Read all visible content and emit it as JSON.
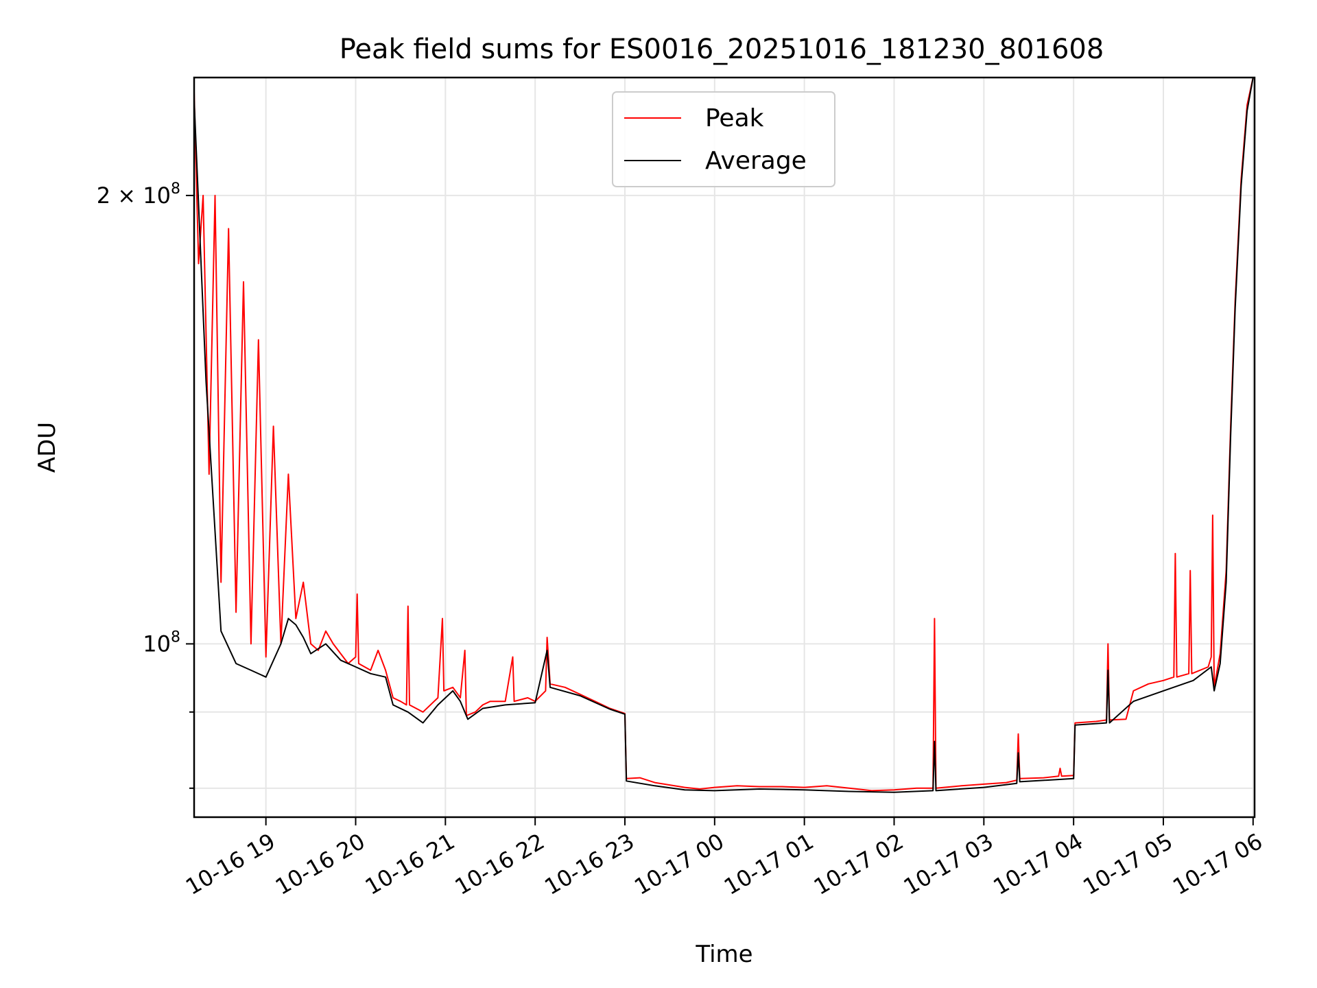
{
  "chart_data": {
    "type": "line",
    "title": "Peak field sums for ES0016_20251016_181230_801608",
    "xlabel": "Time",
    "ylabel": "ADU",
    "yscale": "log",
    "ylim": [
      76500000,
      240000000
    ],
    "xlim": [
      "2025-10-16 18:12",
      "2025-10-17 06:01"
    ],
    "x_ticks": [
      {
        "t": "2025-10-16 19:00",
        "label": "10-16 19"
      },
      {
        "t": "2025-10-16 20:00",
        "label": "10-16 20"
      },
      {
        "t": "2025-10-16 21:00",
        "label": "10-16 21"
      },
      {
        "t": "2025-10-16 22:00",
        "label": "10-16 22"
      },
      {
        "t": "2025-10-16 23:00",
        "label": "10-16 23"
      },
      {
        "t": "2025-10-17 00:00",
        "label": "10-17 00"
      },
      {
        "t": "2025-10-17 01:00",
        "label": "10-17 01"
      },
      {
        "t": "2025-10-17 02:00",
        "label": "10-17 02"
      },
      {
        "t": "2025-10-17 03:00",
        "label": "10-17 03"
      },
      {
        "t": "2025-10-17 04:00",
        "label": "10-17 04"
      },
      {
        "t": "2025-10-17 05:00",
        "label": "10-17 05"
      },
      {
        "t": "2025-10-17 06:00",
        "label": "10-17 06"
      }
    ],
    "y_major_ticks": [
      {
        "value": 100000000,
        "base": "10",
        "exp": "8",
        "mant": ""
      },
      {
        "value": 200000000,
        "base": "10",
        "exp": "8",
        "mant": "2 × "
      }
    ],
    "y_minor_ticks": [
      80000000,
      90000000
    ],
    "grid": true,
    "legend": {
      "position": "top-center"
    },
    "series": [
      {
        "name": "Peak",
        "color": "#ff0000",
        "points": [
          [
            "2025-10-16 18:12",
            235000000
          ],
          [
            "2025-10-16 18:15",
            180000000
          ],
          [
            "2025-10-16 18:18",
            200000000
          ],
          [
            "2025-10-16 18:22",
            130000000
          ],
          [
            "2025-10-16 18:26",
            200000000
          ],
          [
            "2025-10-16 18:30",
            110000000
          ],
          [
            "2025-10-16 18:35",
            190000000
          ],
          [
            "2025-10-16 18:40",
            105000000
          ],
          [
            "2025-10-16 18:45",
            175000000
          ],
          [
            "2025-10-16 18:50",
            100000000
          ],
          [
            "2025-10-16 18:55",
            160000000
          ],
          [
            "2025-10-16 19:00",
            98000000
          ],
          [
            "2025-10-16 19:05",
            140000000
          ],
          [
            "2025-10-16 19:10",
            100000000
          ],
          [
            "2025-10-16 19:15",
            130000000
          ],
          [
            "2025-10-16 19:20",
            104000000
          ],
          [
            "2025-10-16 19:25",
            110000000
          ],
          [
            "2025-10-16 19:30",
            100000000
          ],
          [
            "2025-10-16 19:35",
            99000000
          ],
          [
            "2025-10-16 19:40",
            102000000
          ],
          [
            "2025-10-16 19:45",
            100000000
          ],
          [
            "2025-10-16 19:55",
            97000000
          ],
          [
            "2025-10-16 20:00",
            98000000
          ],
          [
            "2025-10-16 20:01",
            108000000
          ],
          [
            "2025-10-16 20:02",
            97000000
          ],
          [
            "2025-10-16 20:10",
            96000000
          ],
          [
            "2025-10-16 20:15",
            99000000
          ],
          [
            "2025-10-16 20:20",
            96000000
          ],
          [
            "2025-10-16 20:25",
            92000000
          ],
          [
            "2025-10-16 20:30",
            91500000
          ],
          [
            "2025-10-16 20:34",
            91000000
          ],
          [
            "2025-10-16 20:35",
            106000000
          ],
          [
            "2025-10-16 20:36",
            91000000
          ],
          [
            "2025-10-16 20:45",
            90000000
          ],
          [
            "2025-10-16 20:55",
            92000000
          ],
          [
            "2025-10-16 20:58",
            104000000
          ],
          [
            "2025-10-16 20:59",
            93000000
          ],
          [
            "2025-10-16 21:05",
            93500000
          ],
          [
            "2025-10-16 21:10",
            92000000
          ],
          [
            "2025-10-16 21:13",
            99000000
          ],
          [
            "2025-10-16 21:14",
            89500000
          ],
          [
            "2025-10-16 21:20",
            90000000
          ],
          [
            "2025-10-16 21:25",
            91000000
          ],
          [
            "2025-10-16 21:30",
            91500000
          ],
          [
            "2025-10-16 21:40",
            91500000
          ],
          [
            "2025-10-16 21:45",
            98000000
          ],
          [
            "2025-10-16 21:46",
            91500000
          ],
          [
            "2025-10-16 21:55",
            92000000
          ],
          [
            "2025-10-16 22:00",
            91500000
          ],
          [
            "2025-10-16 22:07",
            93000000
          ],
          [
            "2025-10-16 22:08",
            101000000
          ],
          [
            "2025-10-16 22:10",
            94000000
          ],
          [
            "2025-10-16 22:20",
            93500000
          ],
          [
            "2025-10-16 22:30",
            92500000
          ],
          [
            "2025-10-16 22:40",
            91500000
          ],
          [
            "2025-10-16 22:50",
            90500000
          ],
          [
            "2025-10-16 23:00",
            89800000
          ],
          [
            "2025-10-16 23:01",
            81200000
          ],
          [
            "2025-10-16 23:10",
            81300000
          ],
          [
            "2025-10-16 23:20",
            80700000
          ],
          [
            "2025-10-16 23:30",
            80400000
          ],
          [
            "2025-10-16 23:40",
            80100000
          ],
          [
            "2025-10-16 23:50",
            79900000
          ],
          [
            "2025-10-17 00:00",
            80100000
          ],
          [
            "2025-10-17 00:15",
            80300000
          ],
          [
            "2025-10-17 00:30",
            80200000
          ],
          [
            "2025-10-17 00:45",
            80200000
          ],
          [
            "2025-10-17 01:00",
            80100000
          ],
          [
            "2025-10-17 01:15",
            80300000
          ],
          [
            "2025-10-17 01:30",
            80000000
          ],
          [
            "2025-10-17 01:45",
            79700000
          ],
          [
            "2025-10-17 02:00",
            79800000
          ],
          [
            "2025-10-17 02:15",
            80000000
          ],
          [
            "2025-10-17 02:26",
            80000000
          ],
          [
            "2025-10-17 02:27",
            104000000
          ],
          [
            "2025-10-17 02:28",
            80000000
          ],
          [
            "2025-10-17 02:45",
            80300000
          ],
          [
            "2025-10-17 03:00",
            80500000
          ],
          [
            "2025-10-17 03:15",
            80700000
          ],
          [
            "2025-10-17 03:22",
            81000000
          ],
          [
            "2025-10-17 03:23",
            87000000
          ],
          [
            "2025-10-17 03:24",
            81200000
          ],
          [
            "2025-10-17 03:40",
            81300000
          ],
          [
            "2025-10-17 03:50",
            81500000
          ],
          [
            "2025-10-17 03:51",
            82500000
          ],
          [
            "2025-10-17 03:52",
            81500000
          ],
          [
            "2025-10-17 04:00",
            81600000
          ],
          [
            "2025-10-17 04:01",
            88500000
          ],
          [
            "2025-10-17 04:15",
            88700000
          ],
          [
            "2025-10-17 04:22",
            88900000
          ],
          [
            "2025-10-17 04:23",
            100000000
          ],
          [
            "2025-10-17 04:24",
            88900000
          ],
          [
            "2025-10-17 04:35",
            89000000
          ],
          [
            "2025-10-17 04:40",
            93000000
          ],
          [
            "2025-10-17 04:50",
            94000000
          ],
          [
            "2025-10-17 05:00",
            94500000
          ],
          [
            "2025-10-17 05:07",
            95000000
          ],
          [
            "2025-10-17 05:08",
            115000000
          ],
          [
            "2025-10-17 05:09",
            95000000
          ],
          [
            "2025-10-17 05:17",
            95500000
          ],
          [
            "2025-10-17 05:18",
            112000000
          ],
          [
            "2025-10-17 05:19",
            95500000
          ],
          [
            "2025-10-17 05:30",
            96500000
          ],
          [
            "2025-10-17 05:32",
            98000000
          ],
          [
            "2025-10-17 05:33",
            122000000
          ],
          [
            "2025-10-17 05:34",
            93500000
          ],
          [
            "2025-10-17 05:38",
            98500000
          ],
          [
            "2025-10-17 05:42",
            112000000
          ],
          [
            "2025-10-17 05:45",
            140000000
          ],
          [
            "2025-10-17 05:48",
            170000000
          ],
          [
            "2025-10-17 05:52",
            205000000
          ],
          [
            "2025-10-17 05:56",
            230000000
          ],
          [
            "2025-10-17 06:00",
            240000000
          ]
        ]
      },
      {
        "name": "Average",
        "color": "#000000",
        "points": [
          [
            "2025-10-16 18:12",
            232000000
          ],
          [
            "2025-10-16 18:20",
            150000000
          ],
          [
            "2025-10-16 18:30",
            102000000
          ],
          [
            "2025-10-16 18:40",
            97000000
          ],
          [
            "2025-10-16 18:50",
            96000000
          ],
          [
            "2025-10-16 19:00",
            95000000
          ],
          [
            "2025-10-16 19:10",
            100000000
          ],
          [
            "2025-10-16 19:15",
            104000000
          ],
          [
            "2025-10-16 19:20",
            103000000
          ],
          [
            "2025-10-16 19:25",
            101000000
          ],
          [
            "2025-10-16 19:30",
            98500000
          ],
          [
            "2025-10-16 19:40",
            100000000
          ],
          [
            "2025-10-16 19:50",
            97500000
          ],
          [
            "2025-10-16 20:00",
            96500000
          ],
          [
            "2025-10-16 20:10",
            95500000
          ],
          [
            "2025-10-16 20:20",
            95000000
          ],
          [
            "2025-10-16 20:25",
            91000000
          ],
          [
            "2025-10-16 20:35",
            90000000
          ],
          [
            "2025-10-16 20:45",
            88500000
          ],
          [
            "2025-10-16 20:55",
            91000000
          ],
          [
            "2025-10-16 21:05",
            93000000
          ],
          [
            "2025-10-16 21:10",
            91500000
          ],
          [
            "2025-10-16 21:15",
            89000000
          ],
          [
            "2025-10-16 21:25",
            90500000
          ],
          [
            "2025-10-16 21:40",
            91000000
          ],
          [
            "2025-10-16 22:00",
            91300000
          ],
          [
            "2025-10-16 22:08",
            99000000
          ],
          [
            "2025-10-16 22:10",
            93500000
          ],
          [
            "2025-10-16 22:30",
            92300000
          ],
          [
            "2025-10-16 22:50",
            90400000
          ],
          [
            "2025-10-16 23:00",
            89700000
          ],
          [
            "2025-10-16 23:01",
            80900000
          ],
          [
            "2025-10-16 23:20",
            80300000
          ],
          [
            "2025-10-16 23:40",
            79800000
          ],
          [
            "2025-10-17 00:00",
            79700000
          ],
          [
            "2025-10-17 00:30",
            79900000
          ],
          [
            "2025-10-17 01:00",
            79800000
          ],
          [
            "2025-10-17 01:30",
            79600000
          ],
          [
            "2025-10-17 02:00",
            79500000
          ],
          [
            "2025-10-17 02:26",
            79700000
          ],
          [
            "2025-10-17 02:27",
            86000000
          ],
          [
            "2025-10-17 02:28",
            79700000
          ],
          [
            "2025-10-17 03:00",
            80100000
          ],
          [
            "2025-10-17 03:22",
            80600000
          ],
          [
            "2025-10-17 03:23",
            84500000
          ],
          [
            "2025-10-17 03:24",
            80800000
          ],
          [
            "2025-10-17 04:00",
            81200000
          ],
          [
            "2025-10-17 04:01",
            88200000
          ],
          [
            "2025-10-17 04:22",
            88500000
          ],
          [
            "2025-10-17 04:23",
            96000000
          ],
          [
            "2025-10-17 04:24",
            88500000
          ],
          [
            "2025-10-17 04:40",
            91500000
          ],
          [
            "2025-10-17 05:00",
            93000000
          ],
          [
            "2025-10-17 05:20",
            94500000
          ],
          [
            "2025-10-17 05:32",
            96500000
          ],
          [
            "2025-10-17 05:34",
            93000000
          ],
          [
            "2025-10-17 05:38",
            97000000
          ],
          [
            "2025-10-17 05:42",
            110000000
          ],
          [
            "2025-10-17 05:45",
            138000000
          ],
          [
            "2025-10-17 05:48",
            168000000
          ],
          [
            "2025-10-17 05:52",
            203000000
          ],
          [
            "2025-10-17 05:56",
            228000000
          ],
          [
            "2025-10-17 06:00",
            240000000
          ]
        ]
      }
    ]
  }
}
